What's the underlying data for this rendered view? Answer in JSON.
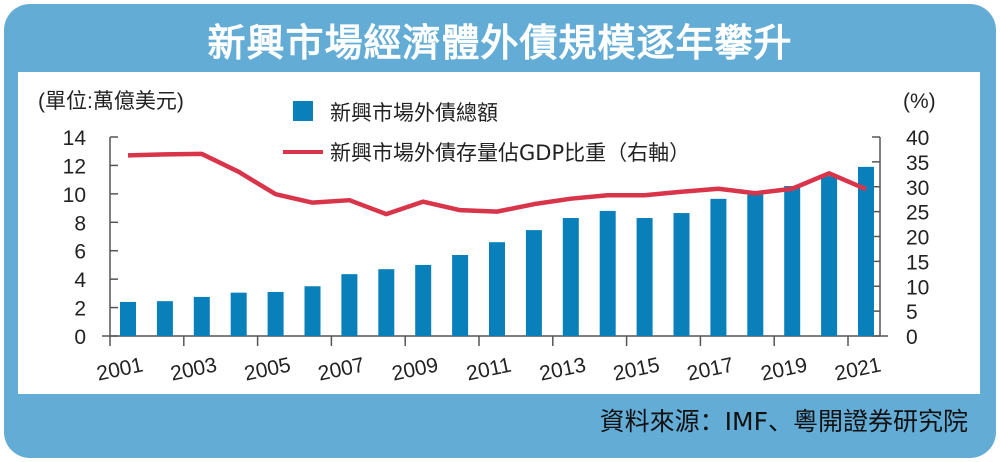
{
  "title": "新興市場經濟體外債規模逐年攀升",
  "source": "資料來源：IMF、粵開證券研究院",
  "chart_data": {
    "type": "bar+line",
    "left_unit": "(單位:萬億美元)",
    "right_unit": "(%)",
    "categories": [
      "2001",
      "2002",
      "2003",
      "2004",
      "2005",
      "2006",
      "2007",
      "2008",
      "2009",
      "2010",
      "2011",
      "2012",
      "2013",
      "2014",
      "2015",
      "2016",
      "2017",
      "2018",
      "2019",
      "2020",
      "2021"
    ],
    "x_tick_labels": [
      "2001",
      "2003",
      "2005",
      "2007",
      "2009",
      "2011",
      "2013",
      "2015",
      "2017",
      "2019",
      "2021"
    ],
    "left_ylim": [
      0,
      14
    ],
    "left_ticks": [
      0,
      2,
      4,
      6,
      8,
      10,
      12,
      14
    ],
    "right_ylim": [
      0,
      40
    ],
    "right_ticks": [
      0,
      5,
      10,
      15,
      20,
      25,
      30,
      35,
      40
    ],
    "grid": false,
    "legend_position": "top-center",
    "series": [
      {
        "name": "新興市場外債總額",
        "type": "bar",
        "axis": "left",
        "color": "#0a80bb",
        "values": [
          2.4,
          2.45,
          2.75,
          3.05,
          3.1,
          3.5,
          4.35,
          4.7,
          5.0,
          5.7,
          6.6,
          7.45,
          8.3,
          8.8,
          8.3,
          8.65,
          9.65,
          10.1,
          10.55,
          11.25,
          11.9
        ]
      },
      {
        "name": "新興市場外債存量佔GDP比重（右軸）",
        "type": "line",
        "axis": "right",
        "color": "#d8344a",
        "values": [
          36.3,
          36.5,
          36.6,
          33,
          28.5,
          26.8,
          27.3,
          24.5,
          27,
          25.3,
          25,
          26.5,
          27.6,
          28.3,
          28.3,
          29,
          29.6,
          28.7,
          29.6,
          32.7,
          29.5
        ]
      }
    ]
  }
}
